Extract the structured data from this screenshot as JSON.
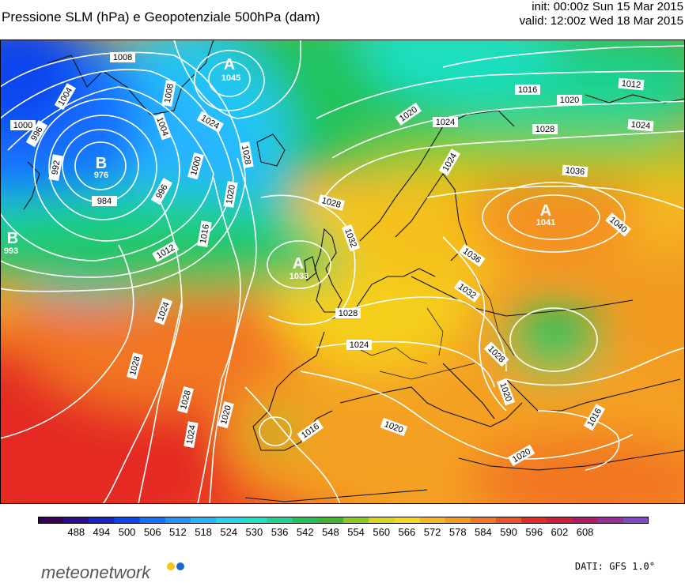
{
  "header": {
    "title": "Pressione SLM (hPa) e Geopotenziale 500hPa (dam)",
    "init": "init: 00:00z Sun 15 Mar 2015",
    "valid": "valid: 12:00z Wed 18 Mar 2015"
  },
  "pressure_labels": [
    "1008",
    "1004",
    "1000",
    "996",
    "992",
    "1004",
    "1008",
    "1024",
    "1028",
    "1020",
    "1016",
    "1012",
    "1024",
    "1028",
    "984",
    "996",
    "1000",
    "1020",
    "1016",
    "1012",
    "1024",
    "1028",
    "1024",
    "1020",
    "1028",
    "1032",
    "1028",
    "1024",
    "1016",
    "1020",
    "1036",
    "1040",
    "1032",
    "1028",
    "1016",
    "1020",
    "1012",
    "1024",
    "1020",
    "1024",
    "1028",
    "1036",
    "1016",
    "1020"
  ],
  "systems": [
    {
      "type": "A",
      "value": "1045"
    },
    {
      "type": "B",
      "value": "976"
    },
    {
      "type": "B",
      "value": "993"
    },
    {
      "type": "A",
      "value": "1033"
    },
    {
      "type": "A",
      "value": "1041"
    }
  ],
  "colorbar": {
    "ticks": [
      "488",
      "494",
      "500",
      "506",
      "512",
      "518",
      "524",
      "530",
      "536",
      "542",
      "548",
      "554",
      "560",
      "566",
      "572",
      "578",
      "584",
      "590",
      "596",
      "602",
      "608"
    ],
    "colors": [
      "#3a0057",
      "#2c0d8c",
      "#1a22c4",
      "#0a45ee",
      "#126fff",
      "#2194ff",
      "#27b4ff",
      "#23d3f0",
      "#1fe0c4",
      "#1fd392",
      "#22c35b",
      "#3db82c",
      "#8ccc22",
      "#d6d61e",
      "#f5d81e",
      "#f6b620",
      "#f49822",
      "#f27624",
      "#ee5226",
      "#e42a24",
      "#d01e3c",
      "#b31a66",
      "#9a2d9c",
      "#7d49c8"
    ]
  },
  "footer": {
    "brand": "meteonetwork",
    "source": "DATI: GFS 1.0°"
  }
}
